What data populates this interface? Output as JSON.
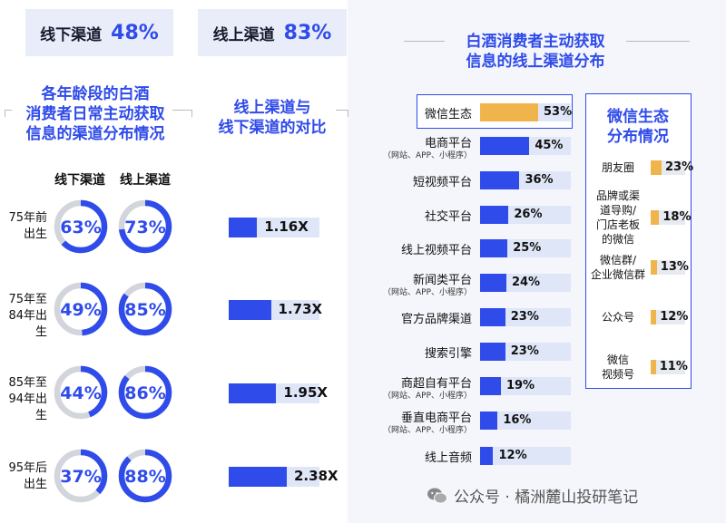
{
  "header": {
    "offline": {
      "label": "线下渠道",
      "value": "48%"
    },
    "online": {
      "label": "线上渠道",
      "value": "83%"
    }
  },
  "titles": {
    "left": [
      "各年龄段的白酒",
      "消费者日常主动获取",
      "信息的渠道分布情况"
    ],
    "middle": [
      "线上渠道与",
      "线下渠道的对比"
    ],
    "right": [
      "白酒消费者主动获取",
      "信息的线上渠道分布"
    ],
    "wechat": [
      "微信生态",
      "分布情况"
    ]
  },
  "column_heads": {
    "offline": "线下渠道",
    "online": "线上渠道"
  },
  "age_groups": [
    {
      "label_lines": [
        "75年前",
        "出生"
      ]
    },
    {
      "label_lines": [
        "75年至",
        "84年出生"
      ]
    },
    {
      "label_lines": [
        "85年至",
        "94年出生"
      ]
    },
    {
      "label_lines": [
        "95年后",
        "出生"
      ]
    }
  ],
  "watermark": "公众号 · 橘洲麓山投研笔记",
  "colors": {
    "accent": "#2f4bea",
    "track": "#dfe6f7",
    "ring_track": "#d3d5dc",
    "highlight": "#f0b44c",
    "panel_bg": "#f4f6fb"
  },
  "chart_data": [
    {
      "type": "donut",
      "categories": [
        "75年前出生",
        "75年至84年出生",
        "85年至94年出生",
        "95年后出生"
      ],
      "series": [
        {
          "name": "线下渠道",
          "values": [
            63,
            49,
            44,
            37
          ],
          "labels": [
            "63%",
            "49%",
            "44%",
            "37%"
          ]
        },
        {
          "name": "线上渠道",
          "values": [
            73,
            85,
            86,
            88
          ],
          "labels": [
            "73%",
            "85%",
            "86%",
            "88%"
          ]
        }
      ]
    },
    {
      "type": "bar",
      "title": "线上渠道与线下渠道的对比",
      "categories": [
        "75年前出生",
        "75年至84年出生",
        "85年至94年出生",
        "95年后出生"
      ],
      "values": [
        1.16,
        1.73,
        1.95,
        2.38
      ],
      "labels": [
        "1.16X",
        "1.73X",
        "1.95X",
        "2.38X"
      ]
    },
    {
      "type": "bar",
      "title": "白酒消费者主动获取信息的线上渠道分布",
      "categories": [
        "微信生态",
        "电商平台",
        "短视频平台",
        "社交平台",
        "线上视频平台",
        "新闻类平台",
        "官方品牌渠道",
        "搜索引擎",
        "商超自有平台",
        "垂直电商平台",
        "线上音频"
      ],
      "subtitles": [
        "",
        "（网站、APP、小程序）",
        "",
        "",
        "",
        "（网站、APP、小程序）",
        "",
        "",
        "（网站、APP、小程序）",
        "（网站、APP、小程序）",
        ""
      ],
      "values": [
        53,
        45,
        36,
        26,
        25,
        24,
        23,
        23,
        19,
        16,
        12
      ],
      "labels": [
        "53%",
        "45%",
        "36%",
        "26%",
        "25%",
        "24%",
        "23%",
        "23%",
        "19%",
        "16%",
        "12%"
      ]
    },
    {
      "type": "bar",
      "title": "微信生态分布情况",
      "categories": [
        "朋友圈",
        "品牌或渠道导购/门店老板的微信",
        "微信群/企业微信群",
        "公众号",
        "微信视频号"
      ],
      "category_lines": [
        [
          "朋友圈"
        ],
        [
          "品牌或渠",
          "道导购/",
          "门店老板",
          "的微信"
        ],
        [
          "微信群/",
          "企业微信群"
        ],
        [
          "公众号"
        ],
        [
          "微信",
          "视频号"
        ]
      ],
      "values": [
        23,
        18,
        13,
        12,
        11
      ],
      "labels": [
        "23%",
        "18%",
        "13%",
        "12%",
        "11%"
      ]
    }
  ]
}
